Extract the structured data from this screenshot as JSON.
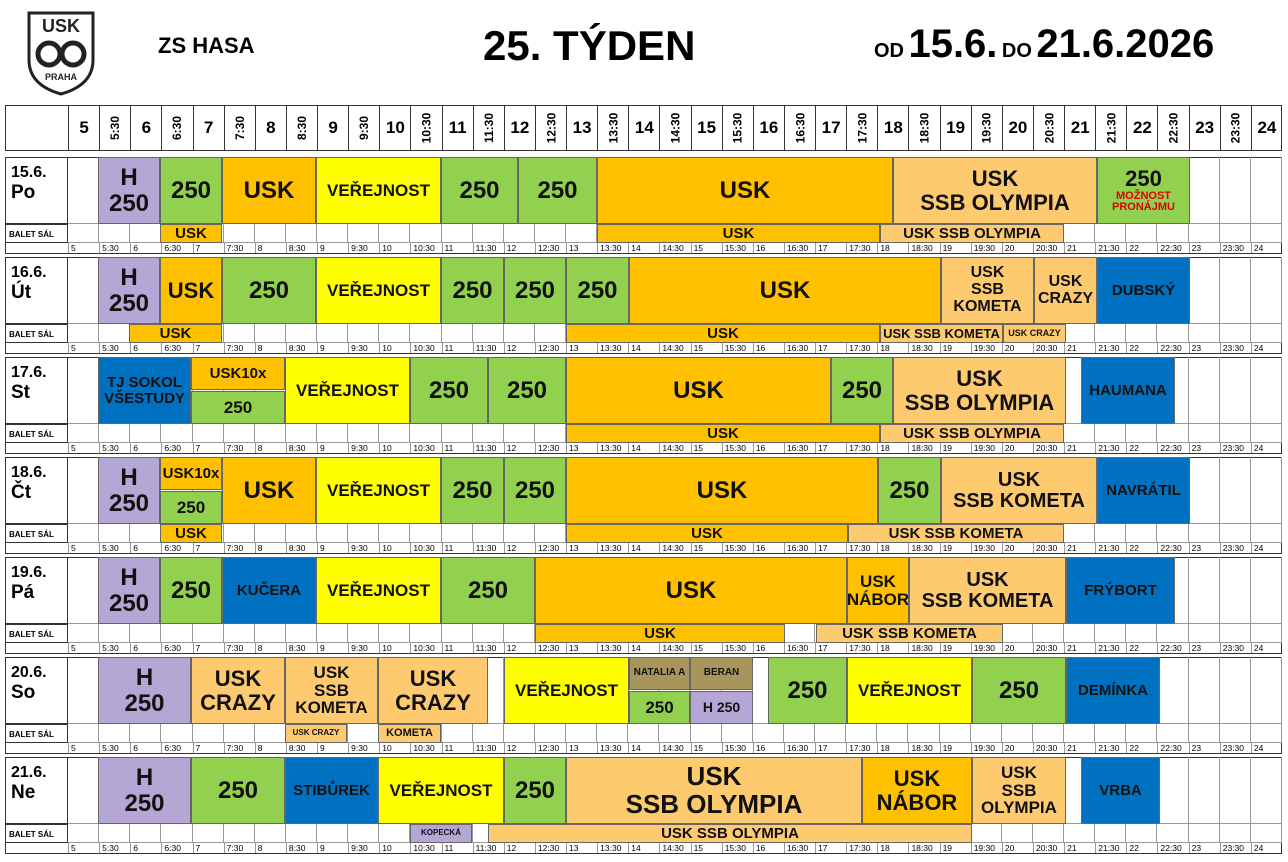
{
  "header": {
    "logo_top": "USK",
    "logo_bottom": "PRAHA",
    "venue": "ZS HASA",
    "week": "25. TÝDEN",
    "from_label": "OD",
    "from_date": "15.6.",
    "to_label": "DO",
    "to_date": "21.6.2026"
  },
  "hours": [
    "5",
    "5:30",
    "6",
    "6:30",
    "7",
    "7:30",
    "8",
    "8:30",
    "9",
    "9:30",
    "10",
    "10:30",
    "11",
    "11:30",
    "12",
    "12:30",
    "13",
    "13:30",
    "14",
    "14:30",
    "15",
    "15:30",
    "16",
    "16:30",
    "17",
    "17:30",
    "18",
    "18:30",
    "19",
    "19:30",
    "20",
    "20:30",
    "21",
    "21:30",
    "22",
    "22:30",
    "23",
    "23:30",
    "24"
  ],
  "days": [
    {
      "date": "15.6.",
      "weekday": "Po",
      "balet_label": "BALET SÁL",
      "blocks": [
        {
          "lines": [
            "H",
            "250"
          ]
        },
        {
          "lines": [
            "250"
          ]
        },
        {
          "lines": [
            "USK"
          ]
        },
        {
          "lines": [
            "VEŘEJNOST"
          ]
        },
        {
          "lines": [
            "250"
          ]
        },
        {
          "lines": [
            "250"
          ]
        },
        {
          "lines": [
            "USK"
          ]
        },
        {
          "lines": [
            "USK",
            "SSB OLYMPIA"
          ]
        },
        {
          "lines": [
            "250",
            "MOŽNOST",
            "PRONÁJMU"
          ]
        }
      ],
      "balet": [
        {
          "lines": [
            "USK"
          ]
        },
        {
          "lines": [
            "USK"
          ]
        },
        {
          "lines": [
            "USK SSB OLYMPIA"
          ]
        }
      ]
    },
    {
      "date": "16.6.",
      "weekday": "Út",
      "balet_label": "BALET SÁL",
      "blocks": [
        {
          "lines": [
            "H",
            "250"
          ]
        },
        {
          "lines": [
            "USK"
          ]
        },
        {
          "lines": [
            "250"
          ]
        },
        {
          "lines": [
            "VEŘEJNOST"
          ]
        },
        {
          "lines": [
            "250"
          ]
        },
        {
          "lines": [
            "250"
          ]
        },
        {
          "lines": [
            "250"
          ]
        },
        {
          "lines": [
            "USK"
          ]
        },
        {
          "lines": [
            "USK",
            "SSB",
            "KOMETA"
          ]
        },
        {
          "lines": [
            "USK",
            "CRAZY"
          ]
        },
        {
          "lines": [
            "DUBSKÝ"
          ]
        }
      ],
      "balet": [
        {
          "lines": [
            "USK"
          ]
        },
        {
          "lines": [
            "USK"
          ]
        },
        {
          "lines": [
            "USK SSB KOMETA"
          ]
        },
        {
          "lines": [
            "USK CRAZY"
          ]
        }
      ]
    },
    {
      "date": "17.6.",
      "weekday": "St",
      "balet_label": "BALET SÁL",
      "blocks": [
        {
          "lines": [
            "TJ SOKOL",
            "VŠESTUDY"
          ]
        },
        {
          "lines": [
            "USK10x"
          ]
        },
        {
          "lines": [
            "250"
          ]
        },
        {
          "lines": [
            "VEŘEJNOST"
          ]
        },
        {
          "lines": [
            "250"
          ]
        },
        {
          "lines": [
            "250"
          ]
        },
        {
          "lines": [
            "USK"
          ]
        },
        {
          "lines": [
            "250"
          ]
        },
        {
          "lines": [
            "USK",
            "SSB OLYMPIA"
          ]
        },
        {
          "lines": [
            "HAUMANA"
          ]
        }
      ],
      "balet": [
        {
          "lines": [
            "USK"
          ]
        },
        {
          "lines": [
            "USK SSB OLYMPIA"
          ]
        }
      ]
    },
    {
      "date": "18.6.",
      "weekday": "Čt",
      "balet_label": "BALET SÁL",
      "blocks": [
        {
          "lines": [
            "H",
            "250"
          ]
        },
        {
          "lines": [
            "USK10x"
          ]
        },
        {
          "lines": [
            "250"
          ]
        },
        {
          "lines": [
            "USK"
          ]
        },
        {
          "lines": [
            "VEŘEJNOST"
          ]
        },
        {
          "lines": [
            "250"
          ]
        },
        {
          "lines": [
            "250"
          ]
        },
        {
          "lines": [
            "USK"
          ]
        },
        {
          "lines": [
            "250"
          ]
        },
        {
          "lines": [
            "USK",
            "SSB KOMETA"
          ]
        },
        {
          "lines": [
            "NAVRÁTIL"
          ]
        }
      ],
      "balet": [
        {
          "lines": [
            "USK"
          ]
        },
        {
          "lines": [
            "USK"
          ]
        },
        {
          "lines": [
            "USK SSB KOMETA"
          ]
        }
      ]
    },
    {
      "date": "19.6.",
      "weekday": "Pá",
      "balet_label": "BALET SÁL",
      "blocks": [
        {
          "lines": [
            "H",
            "250"
          ]
        },
        {
          "lines": [
            "250"
          ]
        },
        {
          "lines": [
            "KUČERA"
          ]
        },
        {
          "lines": [
            "VEŘEJNOST"
          ]
        },
        {
          "lines": [
            "250"
          ]
        },
        {
          "lines": [
            "USK"
          ]
        },
        {
          "lines": [
            "USK",
            "NÁBOR"
          ]
        },
        {
          "lines": [
            "USK",
            "SSB KOMETA"
          ]
        },
        {
          "lines": [
            "FRÝBORT"
          ]
        }
      ],
      "balet": [
        {
          "lines": [
            "USK"
          ]
        },
        {
          "lines": [
            "USK SSB KOMETA"
          ]
        }
      ]
    },
    {
      "date": "20.6.",
      "weekday": "So",
      "balet_label": "BALET SÁL",
      "blocks": [
        {
          "lines": [
            "H",
            "250"
          ]
        },
        {
          "lines": [
            "USK",
            "CRAZY"
          ]
        },
        {
          "lines": [
            "USK",
            "SSB",
            "KOMETA"
          ]
        },
        {
          "lines": [
            "USK",
            "CRAZY"
          ]
        },
        {
          "lines": [
            "VEŘEJNOST"
          ]
        },
        {
          "lines": [
            "NATALIA A"
          ]
        },
        {
          "lines": [
            "BERAN"
          ]
        },
        {
          "lines": [
            "250"
          ]
        },
        {
          "lines": [
            "H 250"
          ]
        },
        {
          "lines": [
            "250"
          ]
        },
        {
          "lines": [
            "VEŘEJNOST"
          ]
        },
        {
          "lines": [
            "250"
          ]
        },
        {
          "lines": [
            "DEMÍNKA"
          ]
        }
      ],
      "balet": [
        {
          "lines": [
            "USK CRAZY"
          ]
        },
        {
          "lines": [
            "KOMETA"
          ]
        }
      ]
    },
    {
      "date": "21.6.",
      "weekday": "Ne",
      "balet_label": "BALET SÁL",
      "blocks": [
        {
          "lines": [
            "H",
            "250"
          ]
        },
        {
          "lines": [
            "250"
          ]
        },
        {
          "lines": [
            "STIBŮREK"
          ]
        },
        {
          "lines": [
            "VEŘEJNOST"
          ]
        },
        {
          "lines": [
            "250"
          ]
        },
        {
          "lines": [
            "USK",
            "SSB OLYMPIA"
          ]
        },
        {
          "lines": [
            "USK",
            "NÁBOR"
          ]
        },
        {
          "lines": [
            "USK",
            "SSB",
            "OLYMPIA"
          ]
        },
        {
          "lines": [
            "VRBA"
          ]
        }
      ],
      "balet": [
        {
          "lines": [
            "KOPECKÁ"
          ]
        },
        {
          "lines": [
            "USK SSB OLYMPIA"
          ]
        }
      ]
    }
  ]
}
